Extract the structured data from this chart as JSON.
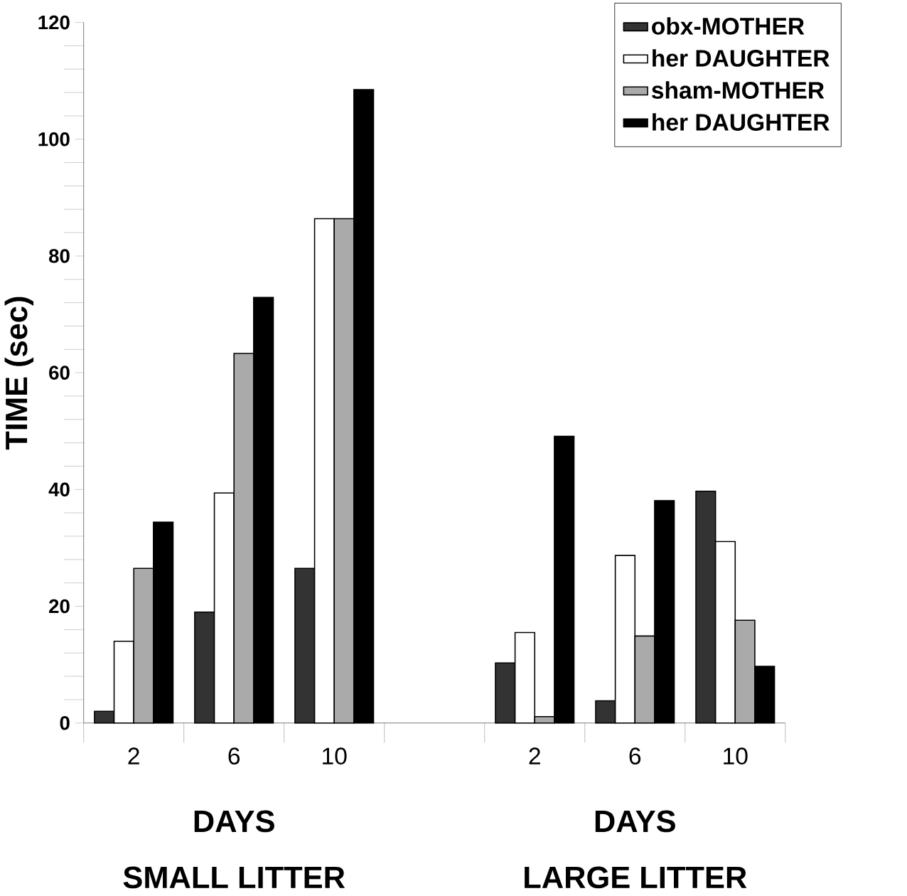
{
  "chart_data": {
    "type": "bar",
    "ylabel": "TIME (sec)",
    "categories": [
      "2",
      "6",
      "10",
      null,
      "2",
      "6",
      "10"
    ],
    "series": [
      {
        "name": "obx-MOTHER",
        "color": "#333333",
        "values": [
          2,
          19,
          26.5,
          null,
          10.3,
          3.8,
          39.7
        ]
      },
      {
        "name": "her DAUGHTER",
        "color": "#ffffff",
        "values": [
          14,
          39.4,
          86.4,
          null,
          15.5,
          28.7,
          31.1
        ]
      },
      {
        "name": "sham-MOTHER",
        "color": "#aaaaaa",
        "values": [
          26.5,
          63.3,
          86.4,
          null,
          1.1,
          14.9,
          17.6
        ]
      },
      {
        "name": "her DAUGHTER",
        "color": "#000000",
        "values": [
          34.4,
          72.9,
          108.5,
          null,
          49.1,
          38.1,
          9.7
        ]
      }
    ],
    "ylim": [
      0,
      120
    ],
    "yticks": [
      0,
      20,
      40,
      60,
      80,
      100,
      120
    ],
    "legend": "top right",
    "annotations": [
      "DAYS",
      "SMALL LITTER",
      "DAYS",
      "LARGE LITTER"
    ]
  }
}
